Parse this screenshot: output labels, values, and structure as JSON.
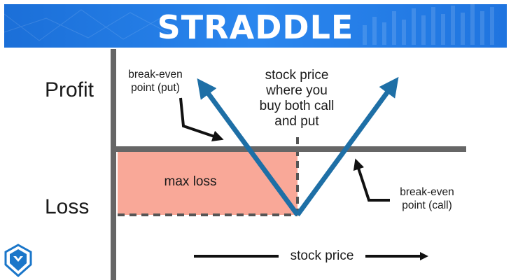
{
  "banner": {
    "title": "STRADDLE",
    "color": "#1f78e6"
  },
  "axis": {
    "profit_label": "Profit",
    "loss_label": "Loss",
    "x_label": "stock price"
  },
  "regions": {
    "max_loss_label": "max loss",
    "max_loss_color": "#f9a898"
  },
  "annotations": {
    "breakeven_put": [
      "break-even",
      "point (put)"
    ],
    "purchase_price": [
      "stock price",
      "where you",
      "buy both call",
      "and put"
    ],
    "breakeven_call": [
      "break-even",
      "point (call)"
    ]
  },
  "colors": {
    "payoff_line": "#1e6fa6",
    "axes": "#666666"
  },
  "icons": {
    "logo": "shield-logo-icon"
  }
}
